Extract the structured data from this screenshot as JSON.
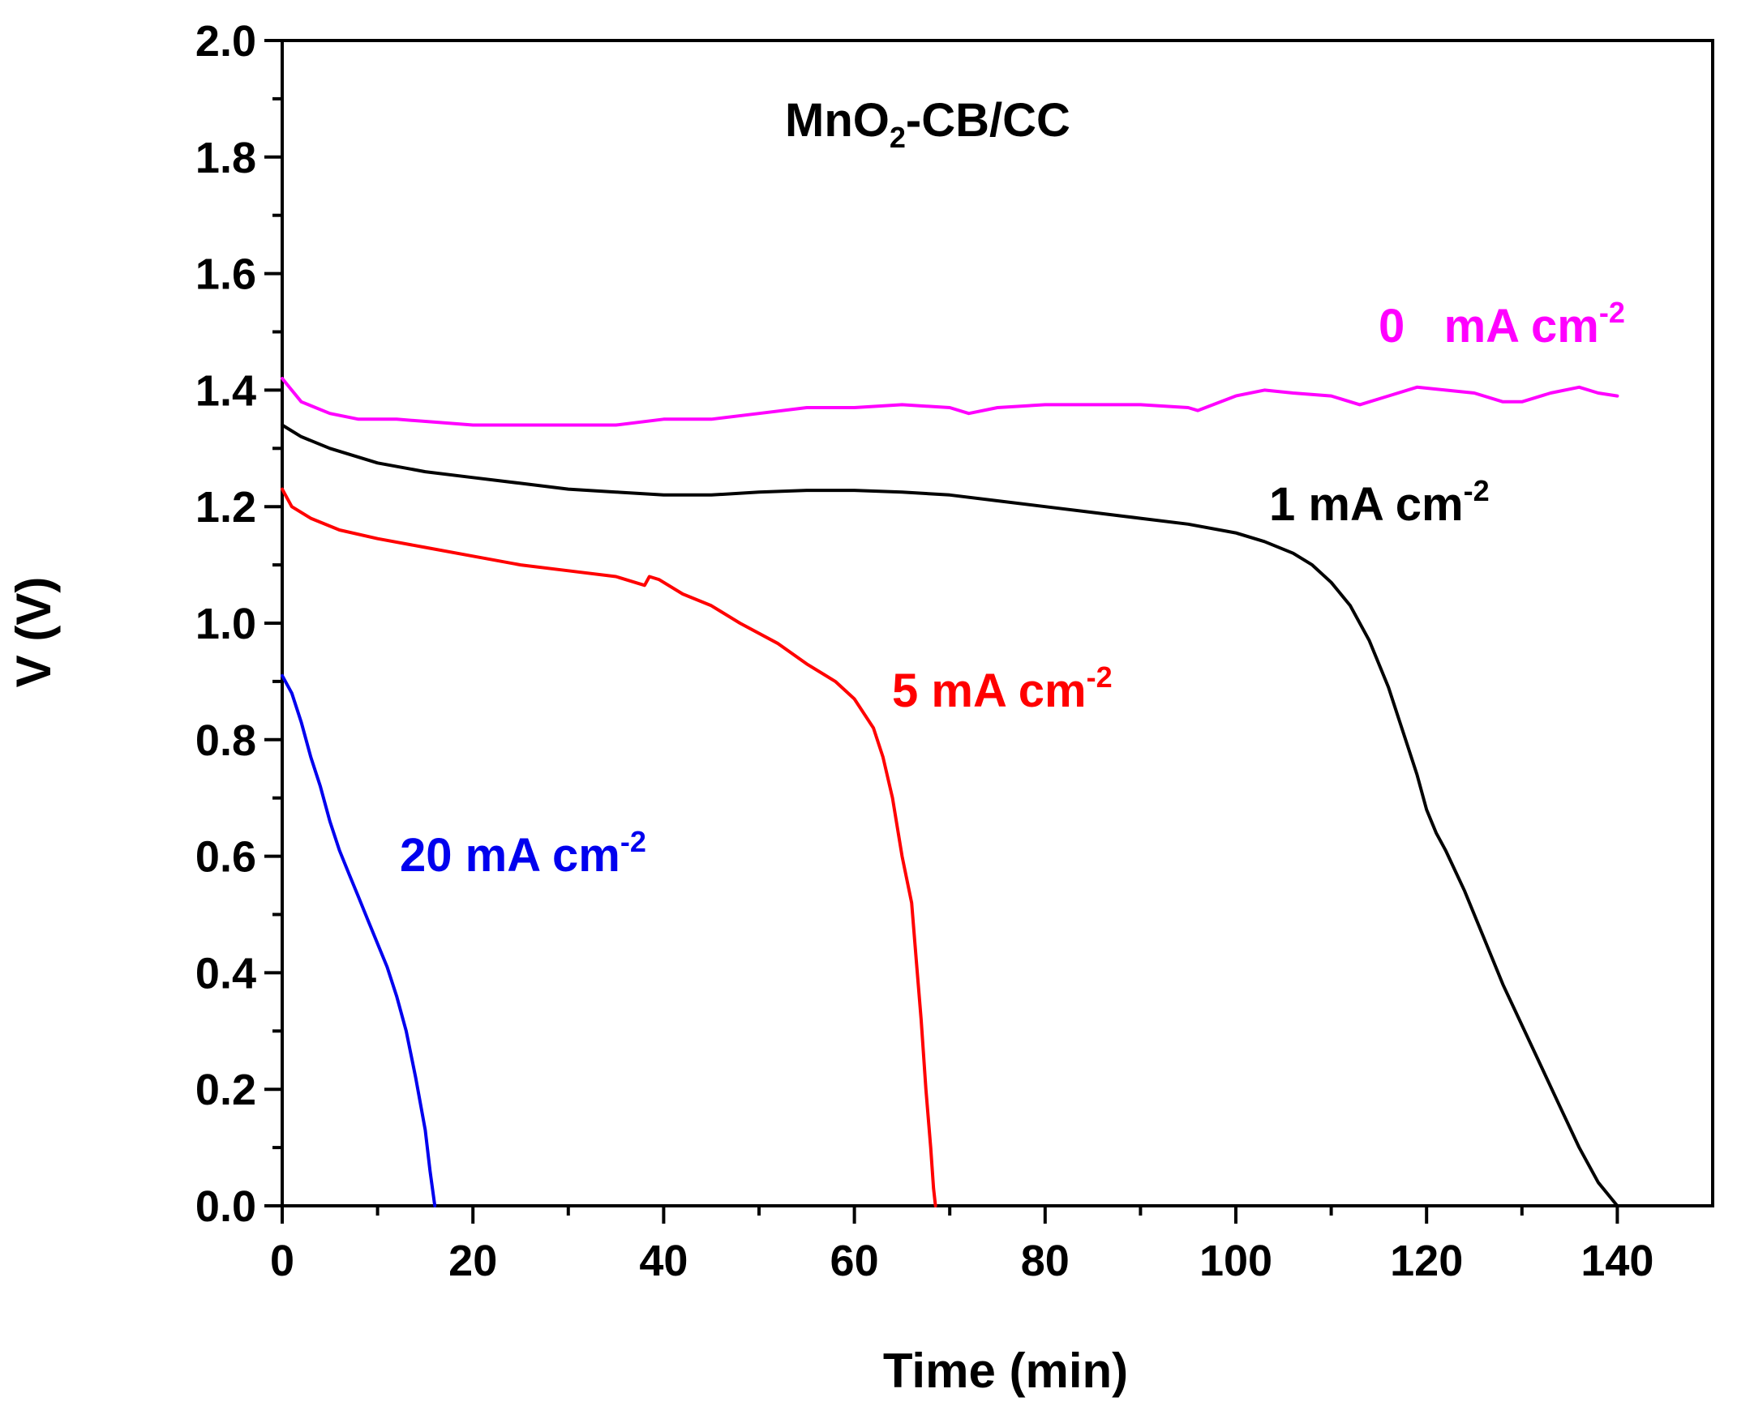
{
  "chart_data": {
    "type": "line",
    "title": "",
    "annotation": {
      "base": "MnO",
      "sub": "2",
      "rest": "-CB/CC"
    },
    "xlabel": "Time (min)",
    "ylabel": "V (V)",
    "xlim": [
      0,
      150
    ],
    "ylim": [
      0,
      2.0
    ],
    "x_ticks": [
      0,
      20,
      40,
      60,
      80,
      100,
      120,
      140
    ],
    "y_ticks": [
      0.0,
      0.2,
      0.4,
      0.6,
      0.8,
      1.0,
      1.2,
      1.4,
      1.6,
      1.8,
      2.0
    ],
    "y_tick_labels": [
      "0.0",
      "0.2",
      "0.4",
      "0.6",
      "0.8",
      "1.0",
      "1.2",
      "1.4",
      "1.6",
      "1.8",
      "2.0"
    ],
    "x_tick_labels": [
      "0",
      "20",
      "40",
      "60",
      "80",
      "100",
      "120",
      "140"
    ],
    "grid": false,
    "series": [
      {
        "name": "0 mA cm-2",
        "label_main": "0   mA cm",
        "label_sup": "-2",
        "color": "#ff00ff",
        "x": [
          0,
          2,
          5,
          8,
          12,
          16,
          20,
          25,
          30,
          35,
          40,
          45,
          50,
          55,
          60,
          65,
          70,
          72,
          75,
          80,
          85,
          90,
          95,
          96,
          100,
          103,
          106,
          110,
          113,
          116,
          119,
          122,
          125,
          128,
          130,
          133,
          136,
          138,
          140
        ],
        "values": [
          1.42,
          1.38,
          1.36,
          1.35,
          1.35,
          1.345,
          1.34,
          1.34,
          1.34,
          1.34,
          1.35,
          1.35,
          1.36,
          1.37,
          1.37,
          1.375,
          1.37,
          1.36,
          1.37,
          1.375,
          1.375,
          1.375,
          1.37,
          1.365,
          1.39,
          1.4,
          1.395,
          1.39,
          1.375,
          1.39,
          1.405,
          1.4,
          1.395,
          1.38,
          1.38,
          1.395,
          1.405,
          1.395,
          1.39
        ]
      },
      {
        "name": "1 mA cm-2",
        "label_main": "1 mA cm",
        "label_sup": "-2",
        "color": "#000000",
        "x": [
          0,
          2,
          5,
          10,
          15,
          20,
          25,
          30,
          35,
          40,
          45,
          50,
          55,
          60,
          65,
          70,
          75,
          80,
          85,
          90,
          95,
          100,
          103,
          106,
          108,
          110,
          112,
          114,
          116,
          117,
          118,
          119,
          120,
          121,
          122,
          124,
          126,
          128,
          130,
          132,
          134,
          136,
          138,
          140
        ],
        "values": [
          1.34,
          1.32,
          1.3,
          1.275,
          1.26,
          1.25,
          1.24,
          1.23,
          1.225,
          1.22,
          1.22,
          1.225,
          1.228,
          1.228,
          1.225,
          1.22,
          1.21,
          1.2,
          1.19,
          1.18,
          1.17,
          1.155,
          1.14,
          1.12,
          1.1,
          1.07,
          1.03,
          0.97,
          0.89,
          0.84,
          0.79,
          0.74,
          0.68,
          0.64,
          0.61,
          0.54,
          0.46,
          0.38,
          0.31,
          0.24,
          0.17,
          0.1,
          0.04,
          0.0
        ]
      },
      {
        "name": "5 mA cm-2",
        "label_main": "5 mA cm",
        "label_sup": "-2",
        "color": "#ff0000",
        "x": [
          0,
          1,
          3,
          6,
          10,
          15,
          20,
          25,
          30,
          35,
          38,
          38.5,
          39.5,
          42,
          45,
          48,
          52,
          55,
          58,
          60,
          62,
          63,
          64,
          65,
          66,
          66.5,
          67,
          67.5,
          68,
          68.3,
          68.5
        ],
        "values": [
          1.23,
          1.2,
          1.18,
          1.16,
          1.145,
          1.13,
          1.115,
          1.1,
          1.09,
          1.08,
          1.065,
          1.08,
          1.075,
          1.05,
          1.03,
          1.0,
          0.965,
          0.93,
          0.9,
          0.87,
          0.82,
          0.77,
          0.7,
          0.6,
          0.52,
          0.42,
          0.32,
          0.2,
          0.1,
          0.03,
          0.0
        ]
      },
      {
        "name": "20 mA cm-2",
        "label_main": "20 mA cm",
        "label_sup": "-2",
        "color": "#0000ee",
        "x": [
          0,
          1,
          2,
          3,
          4,
          5,
          6,
          7,
          8,
          9,
          10,
          11,
          12,
          13,
          14,
          15,
          15.5,
          16
        ],
        "values": [
          0.91,
          0.88,
          0.83,
          0.77,
          0.72,
          0.66,
          0.61,
          0.57,
          0.53,
          0.49,
          0.45,
          0.41,
          0.36,
          0.3,
          0.22,
          0.13,
          0.06,
          0.0
        ]
      }
    ]
  }
}
